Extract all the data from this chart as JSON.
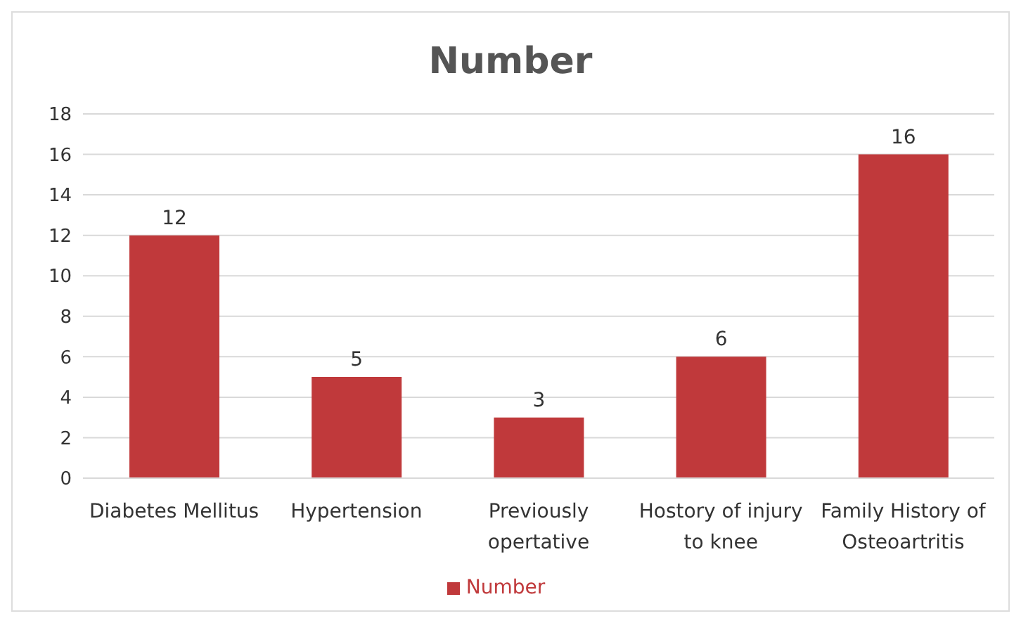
{
  "chart_data": {
    "type": "bar",
    "title": "Number",
    "categories": [
      "Diabetes Mellitus",
      "Hypertension",
      "Previously opertative",
      "Hostory of injury to knee",
      "Family History of Osteoartritis"
    ],
    "series": [
      {
        "name": "Number",
        "color": "#c0393b",
        "values": [
          12,
          5,
          3,
          6,
          16
        ]
      }
    ],
    "ylim": [
      0,
      18
    ],
    "yticks": [
      0,
      2,
      4,
      6,
      8,
      10,
      12,
      14,
      16,
      18
    ],
    "grid": "y",
    "legend": "bottom",
    "data_labels": true
  }
}
